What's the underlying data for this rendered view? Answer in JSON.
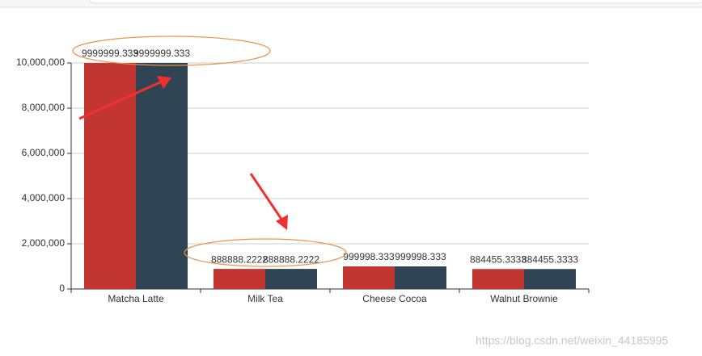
{
  "chart_data": {
    "type": "bar",
    "categories": [
      "Matcha Latte",
      "Milk Tea",
      "Cheese Cocoa",
      "Walnut Brownie"
    ],
    "series": [
      {
        "color": "#c23531",
        "values": [
          9999999.333,
          888888.2222,
          999998.333,
          884455.3333
        ]
      },
      {
        "color": "#2f4554",
        "values": [
          9999999.333,
          888888.2222,
          999998.333,
          884455.3333
        ]
      }
    ],
    "ylim": [
      0,
      10000000
    ],
    "yticks": [
      0,
      {
        "value": 2000000,
        "label": "2,000,000"
      },
      {
        "value": 4000000,
        "label": "4,000,000"
      },
      {
        "value": 6000000,
        "label": "6,000,000"
      },
      {
        "value": 8000000,
        "label": "8,000,000"
      },
      {
        "value": 10000000,
        "label": "10,000,000"
      }
    ],
    "grid": true,
    "watermark": "https://blog.csdn.net/weixin_44185995"
  }
}
